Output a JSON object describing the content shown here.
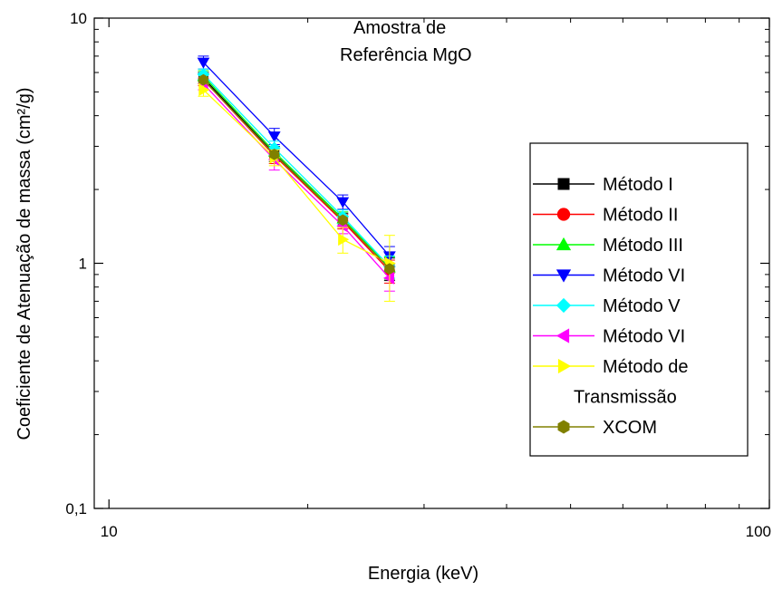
{
  "chart_data": {
    "type": "line",
    "title": "",
    "annotation": [
      "Amostra de",
      "Referência MgO"
    ],
    "xlabel": "Energia (keV)",
    "ylabel": "Coeficiente de Atenuação de massa (cm²/g)",
    "xscale": "log",
    "yscale": "log",
    "xlim": [
      9.5,
      100
    ],
    "ylim": [
      0.1,
      10
    ],
    "x_ticks": [
      {
        "value": 10,
        "label": "10"
      },
      {
        "value": 100,
        "label": "100"
      }
    ],
    "y_ticks": [
      {
        "value": 0.1,
        "label": "0,1"
      },
      {
        "value": 1,
        "label": "1"
      },
      {
        "value": 10,
        "label": "10"
      }
    ],
    "grid": false,
    "legend_position": "right",
    "x": [
      13.9,
      17.8,
      22.6,
      26.6
    ],
    "series": [
      {
        "name": "Método I",
        "color": "#000000",
        "marker": "square",
        "values": [
          5.7,
          2.8,
          1.5,
          0.95
        ],
        "errors": [
          0.3,
          0.2,
          0.1,
          0.1
        ]
      },
      {
        "name": "Método II",
        "color": "#ff0000",
        "marker": "circle",
        "values": [
          5.6,
          2.75,
          1.48,
          0.93
        ],
        "errors": [
          0.3,
          0.2,
          0.1,
          0.1
        ]
      },
      {
        "name": "Método III",
        "color": "#00ff00",
        "marker": "triangle-up",
        "values": [
          5.8,
          2.85,
          1.52,
          0.96
        ],
        "errors": [
          0.3,
          0.2,
          0.1,
          0.1
        ]
      },
      {
        "name": "Método VI",
        "color": "#0000ff",
        "marker": "triangle-down",
        "values": [
          6.6,
          3.3,
          1.78,
          1.07
        ],
        "errors": [
          0.4,
          0.25,
          0.12,
          0.1
        ]
      },
      {
        "name": "Método V",
        "color": "#00ffff",
        "marker": "diamond",
        "values": [
          5.9,
          2.95,
          1.55,
          0.97
        ],
        "errors": [
          0.3,
          0.2,
          0.1,
          0.1
        ]
      },
      {
        "name": "Método VI",
        "color": "#ff00ff",
        "marker": "triangle-left",
        "values": [
          5.4,
          2.65,
          1.42,
          0.87
        ],
        "errors": [
          0.3,
          0.25,
          0.1,
          0.1
        ]
      },
      {
        "name": "Método de Transmissão",
        "color": "#ffff00",
        "marker": "triangle-right",
        "values": [
          5.1,
          2.7,
          1.25,
          1.0
        ],
        "errors": [
          0.3,
          0.2,
          0.15,
          0.3
        ]
      },
      {
        "name": "XCOM",
        "color": "#808000",
        "marker": "hexagon",
        "values": [
          5.6,
          2.78,
          1.5,
          0.95
        ],
        "errors": [
          0,
          0,
          0,
          0
        ]
      }
    ]
  }
}
